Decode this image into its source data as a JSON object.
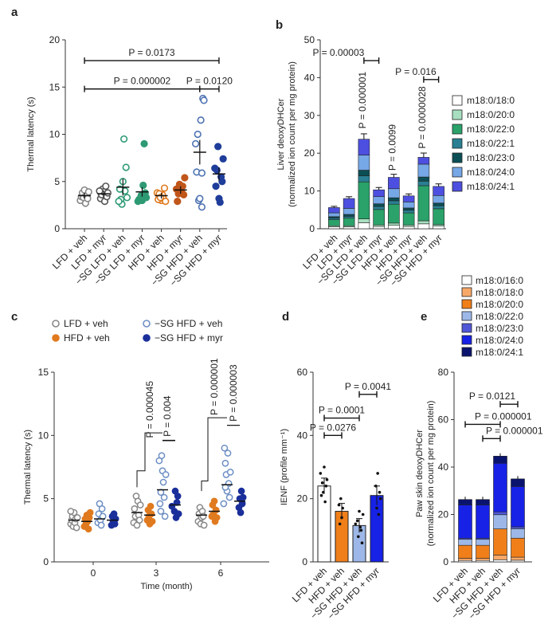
{
  "chart_data": [
    {
      "panel": "a",
      "type": "scatter",
      "ylabel": "Thermal latency (s)",
      "ylim": [
        0,
        20
      ],
      "yticks": [
        0,
        5,
        10,
        15,
        20
      ],
      "categories": [
        "LFD + veh",
        "LFD + myr",
        "−SG LFD + veh",
        "−SG LFD + myr",
        "HFD + veh",
        "HFD + myr",
        "−SG HFD + veh",
        "−SG HFD + myr"
      ],
      "colors": [
        "#888888",
        "#555555",
        "#2e9a74",
        "#2e9a74",
        "#e07a1f",
        "#c0561a",
        "#4f74b3",
        "#1f3d9a"
      ],
      "filled": [
        false,
        false,
        false,
        true,
        false,
        true,
        false,
        true
      ],
      "means": [
        3.5,
        3.7,
        4.4,
        3.9,
        3.5,
        4.1,
        8.1,
        5.8
      ],
      "sem": [
        0.3,
        0.35,
        0.9,
        0.5,
        0.3,
        0.4,
        1.3,
        0.7
      ],
      "points": [
        [
          3.0,
          3.4,
          3.8,
          3.3,
          4.1,
          2.7,
          3.5,
          3.2,
          3.9
        ],
        [
          3.2,
          3.6,
          4.2,
          3.9,
          2.9,
          4.5,
          3.4,
          3.8,
          4.0
        ],
        [
          3.1,
          2.6,
          5.0,
          9.5,
          4.0,
          6.5,
          3.3,
          2.9,
          4.2
        ],
        [
          3.5,
          3.0,
          4.6,
          9.0,
          3.8,
          3.3,
          2.9,
          3.1
        ],
        [
          3.0,
          3.6,
          3.2,
          4.3,
          2.9,
          3.8,
          3.1,
          3.7,
          3.3
        ],
        [
          3.9,
          4.5,
          3.6,
          5.4,
          4.2,
          2.9,
          3.7,
          4.7,
          4.0
        ],
        [
          2.3,
          13.8,
          13.6,
          9.0,
          6.0,
          10.0,
          3.0,
          3.2,
          11.5,
          5.9
        ],
        [
          5.0,
          7.4,
          6.4,
          4.5,
          6.2,
          8.7,
          3.2,
          2.8,
          5.5
        ]
      ],
      "annotations": [
        {
          "label": "P = 0.0173",
          "from": 0,
          "to": 7,
          "y": 17.8
        },
        {
          "label": "P = 0.000002",
          "from": 0,
          "to": 6,
          "y": 14.8
        },
        {
          "label": "P = 0.0120",
          "from": 6,
          "to": 7,
          "y": 14.8
        }
      ]
    },
    {
      "panel": "b",
      "type": "bar",
      "stacked": true,
      "ylabel_line1": "Liver deoxyDHCer",
      "ylabel_line2": "(normalized ion count per mg protein)",
      "ylim": [
        0,
        50
      ],
      "yticks": [
        0,
        10,
        20,
        30,
        40,
        50
      ],
      "categories": [
        "LFD + veh",
        "LFD + myr",
        "−SG LFD + veh",
        "−SG LFD + myr",
        "HFD + veh",
        "HFD + myr",
        "−SG HFD + veh",
        "−SG HFD + myr"
      ],
      "legend": [
        "m18:0/18:0",
        "m18:0/20:0",
        "m18:0/22:0",
        "m18:0/22:1",
        "m18:0/23:0",
        "m18:0/24:0",
        "m18:0/24:1"
      ],
      "colors": [
        "#ffffff",
        "#a8dfc0",
        "#2aa26a",
        "#2a7f93",
        "#0b4f55",
        "#76a7e6",
        "#4d4fe0"
      ],
      "series": [
        {
          "name": "m18:0/18:0",
          "values": [
            0.5,
            0.5,
            1.6,
            0.6,
            0.9,
            0.6,
            1.3,
            0.7
          ]
        },
        {
          "name": "m18:0/20:0",
          "values": [
            0.3,
            0.3,
            1.0,
            0.4,
            0.6,
            0.4,
            0.8,
            0.4
          ]
        },
        {
          "name": "m18:0/22:0",
          "values": [
            1.6,
            2.0,
            9.8,
            4.1,
            5.0,
            3.2,
            9.3,
            4.2
          ]
        },
        {
          "name": "m18:0/22:1",
          "values": [
            0.4,
            0.5,
            1.6,
            0.8,
            0.9,
            0.7,
            1.2,
            0.8
          ]
        },
        {
          "name": "m18:0/23:0",
          "values": [
            0.4,
            0.5,
            1.5,
            0.7,
            0.8,
            0.6,
            1.1,
            0.7
          ]
        },
        {
          "name": "m18:0/24:0",
          "values": [
            1.0,
            1.6,
            4.0,
            1.9,
            2.4,
            1.6,
            3.4,
            2.0
          ]
        },
        {
          "name": "m18:0/24:1",
          "values": [
            1.4,
            2.6,
            4.2,
            1.8,
            3.0,
            1.6,
            1.8,
            2.4
          ]
        }
      ],
      "annotations": [
        {
          "label": "P = 0.00003",
          "type": "bracket",
          "from": 2,
          "to": 3,
          "y": 44.5
        },
        {
          "label": "P = 0.000001",
          "type": "vertical",
          "bar": 2
        },
        {
          "label": "P = 0.0099",
          "type": "vertical",
          "bar": 4
        },
        {
          "label": "P = 0.016",
          "type": "bracket",
          "from": 6,
          "to": 7,
          "y": 39.5
        },
        {
          "label": "P = 0.0000028",
          "type": "vertical",
          "bar": 6
        }
      ]
    },
    {
      "panel": "c",
      "type": "scatter",
      "ylabel": "Thermal latency (s)",
      "xlabel": "Time (month)",
      "ylim": [
        0,
        15
      ],
      "yticks": [
        0,
        5,
        10,
        15
      ],
      "x": [
        "0",
        "3",
        "6"
      ],
      "series": [
        {
          "name": "LFD + veh",
          "color": "#888888",
          "filled": false,
          "means": [
            3.3,
            3.9,
            3.7
          ],
          "points": [
            [
              3.0,
              3.3,
              3.6,
              2.8,
              3.9,
              3.1,
              3.4,
              2.7,
              3.5,
              4.0
            ],
            [
              3.1,
              4.2,
              3.6,
              5.2,
              2.9,
              4.8,
              3.7,
              3.3,
              4.5
            ],
            [
              3.2,
              3.8,
              4.3,
              3.0,
              3.5,
              4.0,
              3.6,
              2.9
            ]
          ]
        },
        {
          "name": "HFD + veh",
          "color": "#e07a1f",
          "filled": true,
          "means": [
            3.2,
            3.7,
            4.0
          ],
          "points": [
            [
              2.8,
              3.4,
              3.0,
              3.7,
              3.2,
              2.6,
              3.5,
              3.9
            ],
            [
              3.3,
              4.1,
              3.6,
              3.0,
              4.4,
              3.8,
              3.2
            ],
            [
              3.6,
              4.5,
              3.8,
              4.8,
              3.2,
              4.1,
              3.5
            ]
          ]
        },
        {
          "name": "−SG HFD + veh",
          "color": "#6d8fc4",
          "filled": false,
          "means": [
            3.4,
            5.7,
            6.1
          ],
          "points": [
            [
              3.1,
              3.8,
              4.6,
              3.3,
              2.9,
              4.2,
              3.6
            ],
            [
              4.0,
              8.4,
              7.2,
              6.3,
              5.1,
              3.6,
              6.9,
              8.0,
              4.6,
              5.5
            ],
            [
              7.8,
              6.9,
              5.6,
              8.6,
              6.2,
              5.1,
              7.1,
              4.6,
              9.0,
              5.9
            ]
          ]
        },
        {
          "name": "−SG HFD + myr",
          "color": "#1a2f9a",
          "filled": true,
          "means": [
            3.3,
            4.5,
            4.8
          ],
          "points": [
            [
              2.9,
              3.6,
              3.2,
              3.8,
              3.0,
              3.4
            ],
            [
              4.0,
              5.6,
              3.5,
              4.7,
              5.2,
              3.8,
              4.4
            ],
            [
              4.3,
              5.0,
              3.9,
              5.6,
              4.6,
              5.1
            ]
          ]
        }
      ],
      "annotations": [
        {
          "label": "P = 0.000045",
          "time": 1
        },
        {
          "label": "P = 0.004",
          "time": 1
        },
        {
          "label": "P = 0.000001",
          "time": 2
        },
        {
          "label": "P = 0.000003",
          "time": 2
        }
      ]
    },
    {
      "panel": "d",
      "type": "bar",
      "ylabel": "IENF (profile mm⁻¹)",
      "ylim": [
        0,
        60
      ],
      "yticks": [
        0,
        20,
        40,
        60
      ],
      "categories": [
        "LFD + veh",
        "HFD + veh",
        "−SG HFD + veh",
        "−SG HFD + myr"
      ],
      "colors": [
        "#ffffff",
        "#f07f1a",
        "#9db8e8",
        "#1722e6"
      ],
      "values": [
        24,
        16,
        11.5,
        21
      ],
      "sem": [
        2.5,
        2.5,
        2.2,
        3.0
      ],
      "points": [
        [
          28,
          21,
          25,
          22,
          30,
          19,
          24,
          26
        ],
        [
          18,
          12,
          20,
          14,
          17
        ],
        [
          13,
          8,
          16,
          11,
          10,
          6,
          15,
          12
        ],
        [
          24,
          17,
          28,
          15,
          22,
          20
        ]
      ],
      "annotations": [
        {
          "label": "P = 0.0041",
          "from": 2,
          "to": 3,
          "y": 53
        },
        {
          "label": "P = 0.0001",
          "from": 0,
          "to": 2,
          "y": 45.5
        },
        {
          "label": "P = 0.0276",
          "from": 0,
          "to": 1,
          "y": 40
        }
      ]
    },
    {
      "panel": "e",
      "type": "bar",
      "stacked": true,
      "ylabel_line1": "Paw skin deoxyDHCer",
      "ylabel_line2": "(normalized ion count per mg protein)",
      "ylim": [
        0,
        80
      ],
      "yticks": [
        0,
        20,
        40,
        60,
        80
      ],
      "categories": [
        "LFD + veh",
        "HFD + veh",
        "−SG HFD + veh",
        "−SG HFD + myr"
      ],
      "legend": [
        "m18:0/16:0",
        "m18:0/18:0",
        "m18:0/20:0",
        "m18:0/22:0",
        "m18:0/23:0",
        "m18:0/24:0",
        "m18:0/24:1"
      ],
      "colors": [
        "#ffffff",
        "#f7a868",
        "#f07f1a",
        "#9db8e8",
        "#5058d8",
        "#1722e6",
        "#0a146e"
      ],
      "series": [
        {
          "name": "m18:0/16:0",
          "values": [
            0.6,
            0.6,
            0.9,
            0.7
          ]
        },
        {
          "name": "m18:0/18:0",
          "values": [
            0.9,
            0.9,
            2.0,
            1.3
          ]
        },
        {
          "name": "m18:0/20:0",
          "values": [
            5.5,
            5.5,
            11.0,
            8.0
          ]
        },
        {
          "name": "m18:0/22:0",
          "values": [
            2.5,
            2.5,
            6.0,
            4.0
          ]
        },
        {
          "name": "m18:0/23:0",
          "values": [
            0.5,
            0.5,
            1.2,
            0.8
          ]
        },
        {
          "name": "m18:0/24:0",
          "values": [
            14.0,
            14.0,
            20.5,
            17.0
          ]
        },
        {
          "name": "m18:0/24:1",
          "values": [
            2.3,
            2.3,
            3.0,
            3.2
          ]
        }
      ],
      "annotations": [
        {
          "label": "P = 0.0121",
          "from": 2,
          "to": 3,
          "y": 66.5
        },
        {
          "label": "P = 0.000001",
          "from": 0,
          "to": 2,
          "y": 58
        },
        {
          "label": "P = 0.000001",
          "from": 1,
          "to": 2,
          "y": 52
        }
      ]
    }
  ],
  "figure_labels": {
    "panel_a": "a",
    "panel_b": "b",
    "panel_c": "c",
    "panel_d": "d",
    "panel_e": "e",
    "c_time_axis_label": "Time (month)"
  }
}
